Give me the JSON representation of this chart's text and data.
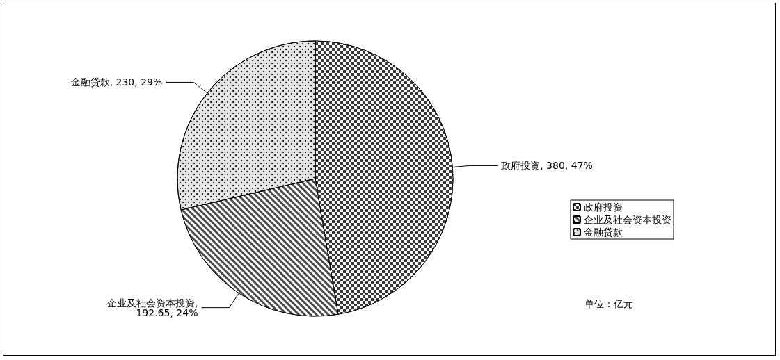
{
  "chart_data": {
    "type": "pie",
    "categories": [
      "政府投资",
      "企业及社会资本投资",
      "金融贷款"
    ],
    "values": [
      380,
      192.65,
      230
    ],
    "colors": [
      "#3a3a3a",
      "#4a4a4a",
      "#e4e4e4"
    ],
    "value_labels": [
      "政府投资, 380, 47%",
      "企业及社会资本投资,\n192.65, 24%",
      "金融贷款, 230, 29%"
    ],
    "legend": "right",
    "annotations": [
      "单位：亿元"
    ]
  }
}
